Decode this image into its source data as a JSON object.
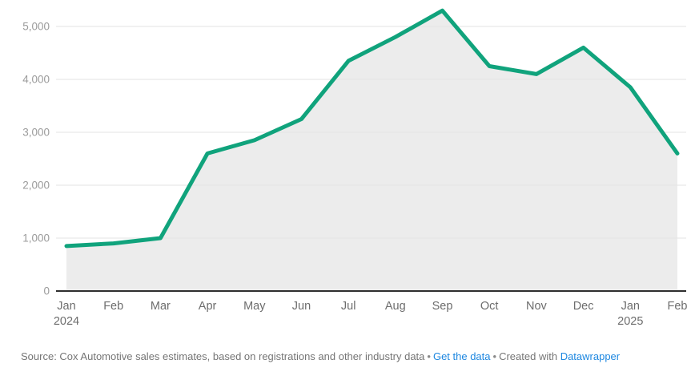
{
  "chart_data": {
    "type": "area",
    "title": "",
    "xlabel": "",
    "ylabel": "",
    "categories": [
      "Jan",
      "Feb",
      "Mar",
      "Apr",
      "May",
      "Jun",
      "Jul",
      "Aug",
      "Sep",
      "Oct",
      "Nov",
      "Dec",
      "Jan",
      "Feb"
    ],
    "year_sublabels": [
      {
        "index": 0,
        "label": "2024"
      },
      {
        "index": 12,
        "label": "2025"
      }
    ],
    "values": [
      850,
      900,
      1000,
      2600,
      2850,
      3250,
      4350,
      4800,
      5300,
      4250,
      4100,
      4600,
      3850,
      2600
    ],
    "ylim": [
      0,
      5500
    ],
    "y_ticks": [
      {
        "value": 0,
        "label": "0"
      },
      {
        "value": 1000,
        "label": "1,000"
      },
      {
        "value": 2000,
        "label": "2,000"
      },
      {
        "value": 3000,
        "label": "3,000"
      },
      {
        "value": 4000,
        "label": "4,000"
      },
      {
        "value": 5000,
        "label": "5,000"
      }
    ],
    "grid": true,
    "legend": "none",
    "colors": {
      "line": "#10a37c",
      "area_fill": "#ececec",
      "grid_line": "#e3e3e3",
      "axis_line": "#2f2f2f",
      "y_tick_label": "#9b9b9b",
      "x_tick_label": "#6d6d6d"
    }
  },
  "footer": {
    "source_text": "Source: Cox Automotive sales estimates, based on registrations and other industry data",
    "separator": "•",
    "get_data_label": "Get the data",
    "created_with": "Created with",
    "datawrapper_label": "Datawrapper",
    "link_color": "#1d87e0"
  }
}
